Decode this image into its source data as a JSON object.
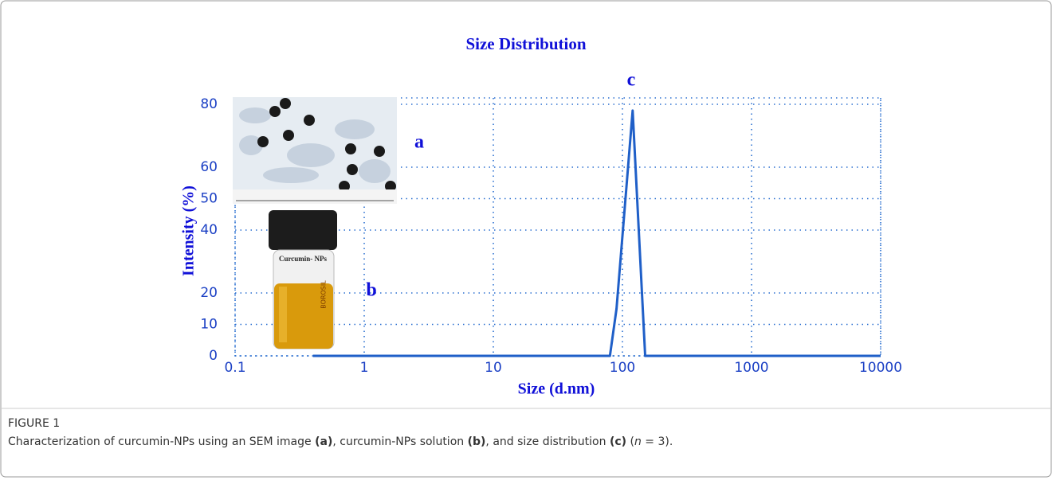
{
  "chart_data": {
    "type": "line",
    "title": "Size Distribution",
    "x_label": "Size (d.nm)",
    "y_label": "Intensity (%)",
    "x": [
      0.4,
      80,
      90,
      120,
      150,
      10000
    ],
    "series": [
      {
        "name": "Intensity",
        "color": "#1f5fc8",
        "values": [
          0,
          0,
          15,
          78,
          0,
          0
        ]
      }
    ],
    "xlim": [
      0.1,
      10000
    ],
    "xticks": [
      0.1,
      1,
      10,
      100,
      1000,
      10000
    ],
    "xscale": "log",
    "ylim": [
      0,
      80
    ],
    "yticks": [
      0,
      10,
      20,
      40,
      50,
      60,
      80
    ],
    "grid": true,
    "annotations": [
      "a",
      "b",
      "c"
    ]
  },
  "figure": {
    "label": "FIGURE 1",
    "caption": [
      "Characterization of curcumin-NPs using an SEM image ",
      "(a)",
      ", curcumin-NPs solution ",
      "(b)",
      ", and size distribution ",
      "(c)",
      " (",
      "n",
      " = 3)."
    ],
    "vial_label": "Curcumin- NPs",
    "vial_brand": "BOROSIL"
  }
}
